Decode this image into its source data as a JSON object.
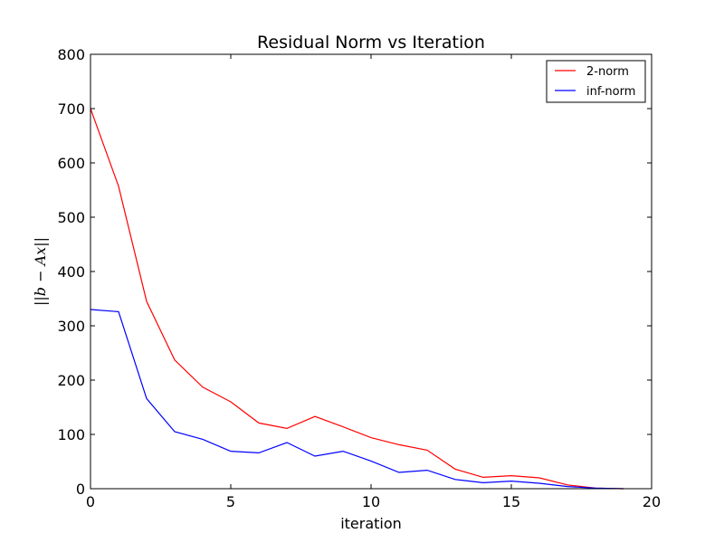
{
  "chart_data": {
    "type": "line",
    "title": "Residual Norm vs Iteration",
    "xlabel": "iteration",
    "ylabel": "||b − Ax||",
    "xlim": [
      0,
      20
    ],
    "ylim": [
      0,
      800
    ],
    "x_ticks": [
      0,
      5,
      10,
      15,
      20
    ],
    "y_ticks": [
      0,
      100,
      200,
      300,
      400,
      500,
      600,
      700,
      800
    ],
    "grid": false,
    "legend_position": "top-right",
    "x": [
      0,
      1,
      2,
      3,
      4,
      5,
      6,
      7,
      8,
      9,
      10,
      11,
      12,
      13,
      14,
      15,
      16,
      17,
      18,
      19
    ],
    "series": [
      {
        "name": "2-norm",
        "color": "#ff0000",
        "values": [
          700,
          557,
          345,
          237,
          187,
          160,
          121,
          111,
          133,
          114,
          94,
          81,
          71,
          36,
          21,
          24,
          20,
          7,
          1,
          0
        ]
      },
      {
        "name": "inf-norm",
        "color": "#0000ff",
        "values": [
          330,
          326,
          166,
          105,
          91,
          69,
          66,
          85,
          60,
          69,
          51,
          30,
          34,
          17,
          11,
          14,
          10,
          4,
          1,
          0
        ]
      }
    ]
  }
}
